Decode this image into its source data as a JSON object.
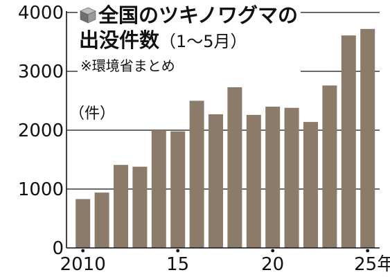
{
  "header": {
    "title_line1": "全国のツキノワグマの",
    "title_line2_main": "出没件数",
    "title_line2_sub": "（1～5月）",
    "source": "※環境省まとめ",
    "unit": "（件）"
  },
  "colors": {
    "bar": "#8d7b69",
    "axis": "#111111",
    "background": "#ffffff"
  },
  "chart_data": {
    "type": "bar",
    "title": "全国のツキノワグマの出没件数（1～5月）",
    "source_note": "※環境省まとめ",
    "unit": "（件）",
    "categories": [
      "2010",
      "2011",
      "2012",
      "2013",
      "2014",
      "2015",
      "2016",
      "2017",
      "2018",
      "2019",
      "2020",
      "2021",
      "2022",
      "2023",
      "2024",
      "2025"
    ],
    "values": [
      830,
      940,
      1410,
      1380,
      2000,
      1980,
      2500,
      2270,
      2730,
      2260,
      2400,
      2380,
      2140,
      2760,
      3610,
      3720
    ],
    "ylim": [
      0,
      4000
    ],
    "yticks": [
      0,
      1000,
      2000,
      3000,
      4000
    ],
    "xtick_labels": [
      {
        "year": "2010",
        "label": "2010"
      },
      {
        "year": "2015",
        "label": "15"
      },
      {
        "year": "2020",
        "label": "20"
      },
      {
        "year": "2025",
        "label": "25年"
      }
    ],
    "grid": true,
    "legend": "none"
  }
}
